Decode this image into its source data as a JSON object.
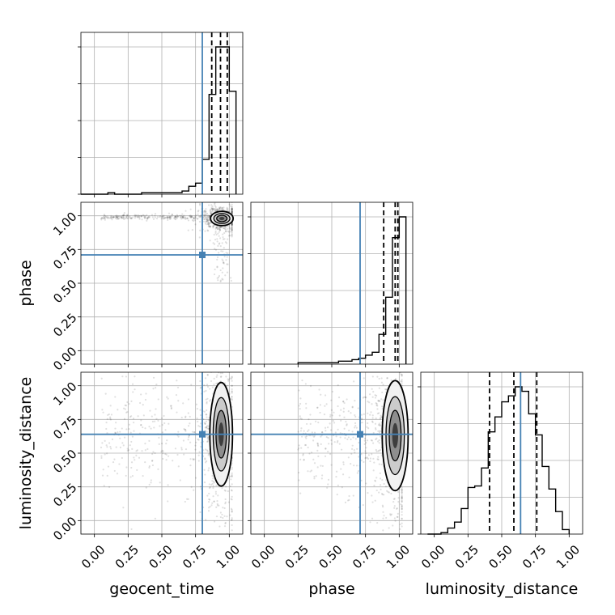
{
  "chart_data": {
    "type": "corner",
    "parameters": [
      "geocent_time",
      "phase",
      "luminosity_distance"
    ],
    "truths": {
      "geocent_time": 0.8,
      "phase": 0.71,
      "luminosity_distance": 0.64
    },
    "ticks": {
      "values": [
        0.0,
        0.25,
        0.5,
        0.75,
        1.0
      ],
      "labels": [
        "0.00",
        "0.25",
        "0.50",
        "0.75",
        "1.00"
      ]
    },
    "axis_range": [
      -0.1,
      1.1
    ],
    "grid": true,
    "colors": {
      "truth": "#4682b4",
      "hist": "#000000",
      "grid": "#b0b0b0",
      "scatter": "#000000"
    },
    "marginals": {
      "geocent_time": {
        "bin_edges": [
          -0.1,
          -0.05,
          0.0,
          0.05,
          0.1,
          0.15,
          0.2,
          0.25,
          0.3,
          0.35,
          0.4,
          0.45,
          0.5,
          0.55,
          0.6,
          0.65,
          0.7,
          0.75,
          0.8,
          0.85,
          0.9,
          0.95,
          1.0,
          1.05
        ],
        "counts": [
          0,
          0,
          0,
          0,
          0.01,
          0,
          0,
          0,
          0,
          0.01,
          0.01,
          0.01,
          0.01,
          0.01,
          0.01,
          0.02,
          0.05,
          0.07,
          0.22,
          0.63,
          0.93,
          0.93,
          0.65
        ],
        "quantiles": [
          0.87,
          0.935,
          0.985
        ]
      },
      "phase": {
        "bin_edges": [
          0.25,
          0.3,
          0.35,
          0.4,
          0.45,
          0.5,
          0.55,
          0.6,
          0.65,
          0.7,
          0.75,
          0.8,
          0.85,
          0.9,
          0.95,
          1.0,
          1.05
        ],
        "counts": [
          0.01,
          0.01,
          0.01,
          0.01,
          0.01,
          0.01,
          0.02,
          0.02,
          0.03,
          0.04,
          0.06,
          0.08,
          0.2,
          0.45,
          0.85,
          0.99
        ],
        "quantiles": [
          0.885,
          0.97,
          0.99
        ]
      },
      "luminosity_distance": {
        "bin_edges": [
          -0.05,
          0.0,
          0.05,
          0.1,
          0.15,
          0.2,
          0.25,
          0.3,
          0.35,
          0.4,
          0.45,
          0.5,
          0.55,
          0.6,
          0.65,
          0.7,
          0.75,
          0.8,
          0.85,
          0.9,
          0.95,
          1.0
        ],
        "counts": [
          0,
          0,
          0.01,
          0.04,
          0.08,
          0.17,
          0.31,
          0.32,
          0.44,
          0.68,
          0.78,
          0.88,
          0.92,
          0.98,
          0.95,
          0.8,
          0.66,
          0.45,
          0.3,
          0.15,
          0.03
        ],
        "quantiles": [
          0.41,
          0.59,
          0.76
        ]
      }
    },
    "joint": [
      {
        "x": "geocent_time",
        "y": "phase",
        "center": [
          0.945,
          0.98
        ],
        "sigma": [
          0.035,
          0.022
        ]
      },
      {
        "x": "geocent_time",
        "y": "luminosity_distance",
        "center": [
          0.94,
          0.64
        ],
        "sigma": [
          0.035,
          0.16
        ]
      },
      {
        "x": "phase",
        "y": "luminosity_distance",
        "center": [
          0.97,
          0.63
        ],
        "sigma": [
          0.04,
          0.17
        ]
      }
    ]
  }
}
